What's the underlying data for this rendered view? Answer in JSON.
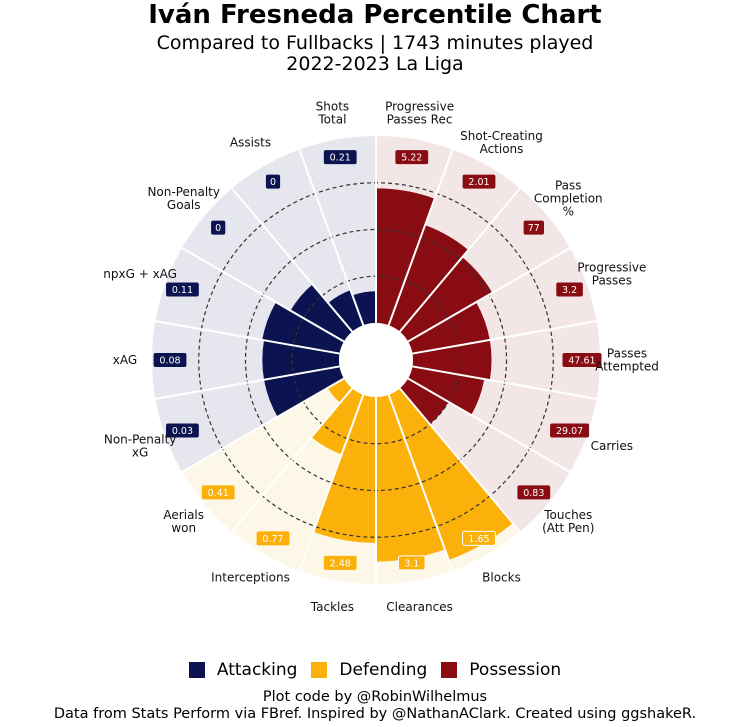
{
  "title": "Iván Fresneda Percentile Chart",
  "subtitle_line1": "Compared to Fullbacks | 1743 minutes played",
  "subtitle_line2": "2022-2023 La Liga",
  "footer_line1": "Plot code by @RobinWilhelmus",
  "footer_line2": "Data from Stats Perform via FBref. Inspired by @NathanAClark. Created using ggshakeR.",
  "colors": {
    "Attacking": "#0b1450",
    "Defending": "#fcb10a",
    "Possession": "#8a0c13",
    "Attacking_bg": "#e6e7ee",
    "Defending_bg": "#fdf7e7",
    "Possession_bg": "#f3e6e6"
  },
  "legend": [
    {
      "label": "Attacking",
      "color": "#0b1450"
    },
    {
      "label": "Defending",
      "color": "#fcb10a"
    },
    {
      "label": "Possession",
      "color": "#8a0c13"
    }
  ],
  "chart_data": {
    "type": "polar-bar",
    "title": "Iván Fresneda Percentile Chart",
    "rlim": [
      0,
      100
    ],
    "grid_percentiles": [
      25,
      50,
      75
    ],
    "categories": [
      {
        "label": "Progressive\nPasses Rec",
        "group": "Possession",
        "value": "5.22",
        "percentile": 72
      },
      {
        "label": "Shot-Creating\nActions",
        "group": "Possession",
        "value": "2.01",
        "percentile": 57
      },
      {
        "label": "Pass\nCompletion\n%",
        "group": "Possession",
        "value": "77",
        "percentile": 52
      },
      {
        "label": "Progressive\nPasses",
        "group": "Possession",
        "value": "3.2",
        "percentile": 42
      },
      {
        "label": "Passes\nAttempted",
        "group": "Possession",
        "value": "47.61",
        "percentile": 42
      },
      {
        "label": "Carries",
        "group": "Possession",
        "value": "29.07",
        "percentile": 39
      },
      {
        "label": "Touches\n(Att Pen)",
        "group": "Possession",
        "value": "0.83",
        "percentile": 25
      },
      {
        "label": "Blocks",
        "group": "Defending",
        "value": "1.65",
        "percentile": 94
      },
      {
        "label": "Clearances",
        "group": "Defending",
        "value": "3.1",
        "percentile": 88
      },
      {
        "label": "Tackles",
        "group": "Defending",
        "value": "2.48",
        "percentile": 78
      },
      {
        "label": "Interceptions",
        "group": "Defending",
        "value": "0.77",
        "percentile": 34
      },
      {
        "label": "Aerials\nwon",
        "group": "Defending",
        "value": "0.41",
        "percentile": 10
      },
      {
        "label": "Non-Penalty\nxG",
        "group": "Attacking",
        "value": "0.03",
        "percentile": 41
      },
      {
        "label": "xAG",
        "group": "Attacking",
        "value": "0.08",
        "percentile": 41
      },
      {
        "label": "npxG + xAG",
        "group": "Attacking",
        "value": "0.11",
        "percentile": 42
      },
      {
        "label": "Non-Penalty\nGoals",
        "group": "Attacking",
        "value": "0",
        "percentile": 33
      },
      {
        "label": "Assists",
        "group": "Attacking",
        "value": "0",
        "percentile": 20
      },
      {
        "label": "Shots\nTotal",
        "group": "Attacking",
        "value": "0.21",
        "percentile": 17
      }
    ]
  }
}
